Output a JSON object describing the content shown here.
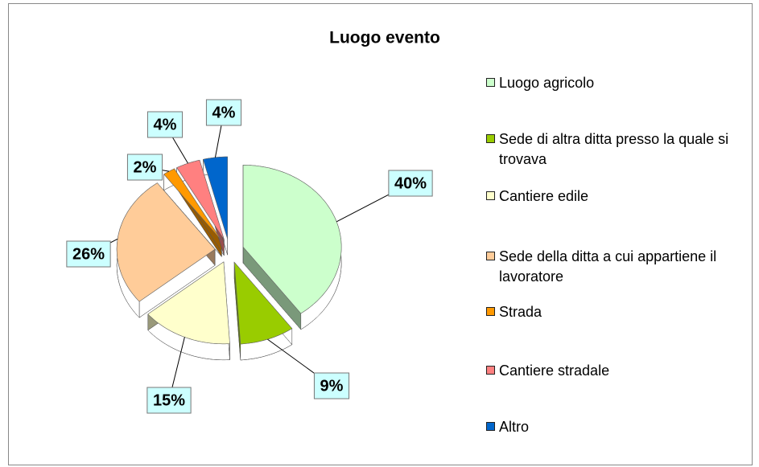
{
  "chart_data": {
    "type": "pie",
    "title": "Luogo evento",
    "categories": [
      "Luogo agricolo",
      "Sede di altra ditta presso la quale si trovava",
      "Cantiere edile",
      "Sede della ditta a cui appartiene il lavoratore",
      "Strada",
      "Cantiere stradale",
      "Altro"
    ],
    "values": [
      40,
      9,
      15,
      26,
      2,
      4,
      4
    ],
    "value_labels": [
      "40%",
      "9%",
      "15%",
      "26%",
      "2%",
      "4%",
      "4%"
    ],
    "colors": [
      "#ccffcc",
      "#99cc00",
      "#ffffcc",
      "#ffcc99",
      "#ff9900",
      "#ff8080",
      "#0066cc"
    ],
    "legend": "right"
  }
}
